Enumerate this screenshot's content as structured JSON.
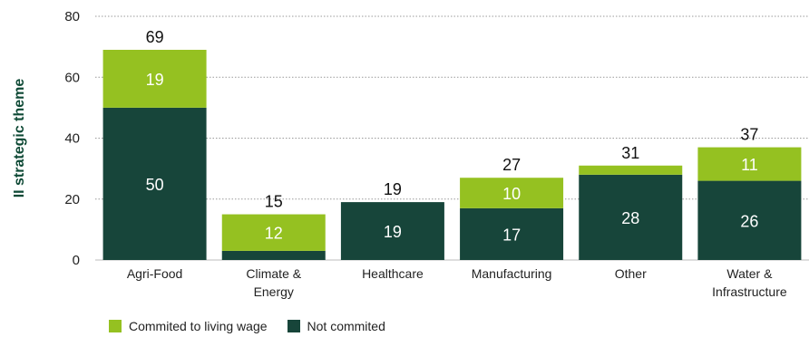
{
  "chart_data": {
    "type": "bar",
    "stacked": true,
    "ylabel": "II strategic theme",
    "ylim": [
      0,
      80
    ],
    "yticks": [
      0,
      20,
      40,
      60,
      80
    ],
    "grid": true,
    "categories": [
      "Agri-Food",
      "Climate & Energy",
      "Healthcare",
      "Manufacturing",
      "Other",
      "Water & Infrastructure"
    ],
    "category_lines": [
      [
        "Agri-Food"
      ],
      [
        "Climate &",
        "Energy"
      ],
      [
        "Healthcare"
      ],
      [
        "Manufacturing"
      ],
      [
        "Other"
      ],
      [
        "Water &",
        "Infrastructure"
      ]
    ],
    "series": [
      {
        "name": "Not commited",
        "values": [
          50,
          3,
          19,
          17,
          28,
          26
        ],
        "labels": [
          "50",
          "",
          "19",
          "17",
          "28",
          "26"
        ],
        "color": "#17453a"
      },
      {
        "name": "Commited to living wage",
        "values": [
          19,
          12,
          0,
          10,
          3,
          11
        ],
        "labels": [
          "19",
          "12",
          "",
          "10",
          "",
          "11"
        ],
        "color": "#95c121"
      }
    ],
    "totals": [
      69,
      15,
      19,
      27,
      31,
      37
    ],
    "legend_position": "bottom-left",
    "legend_order": [
      "Commited to living wage",
      "Not commited"
    ]
  }
}
